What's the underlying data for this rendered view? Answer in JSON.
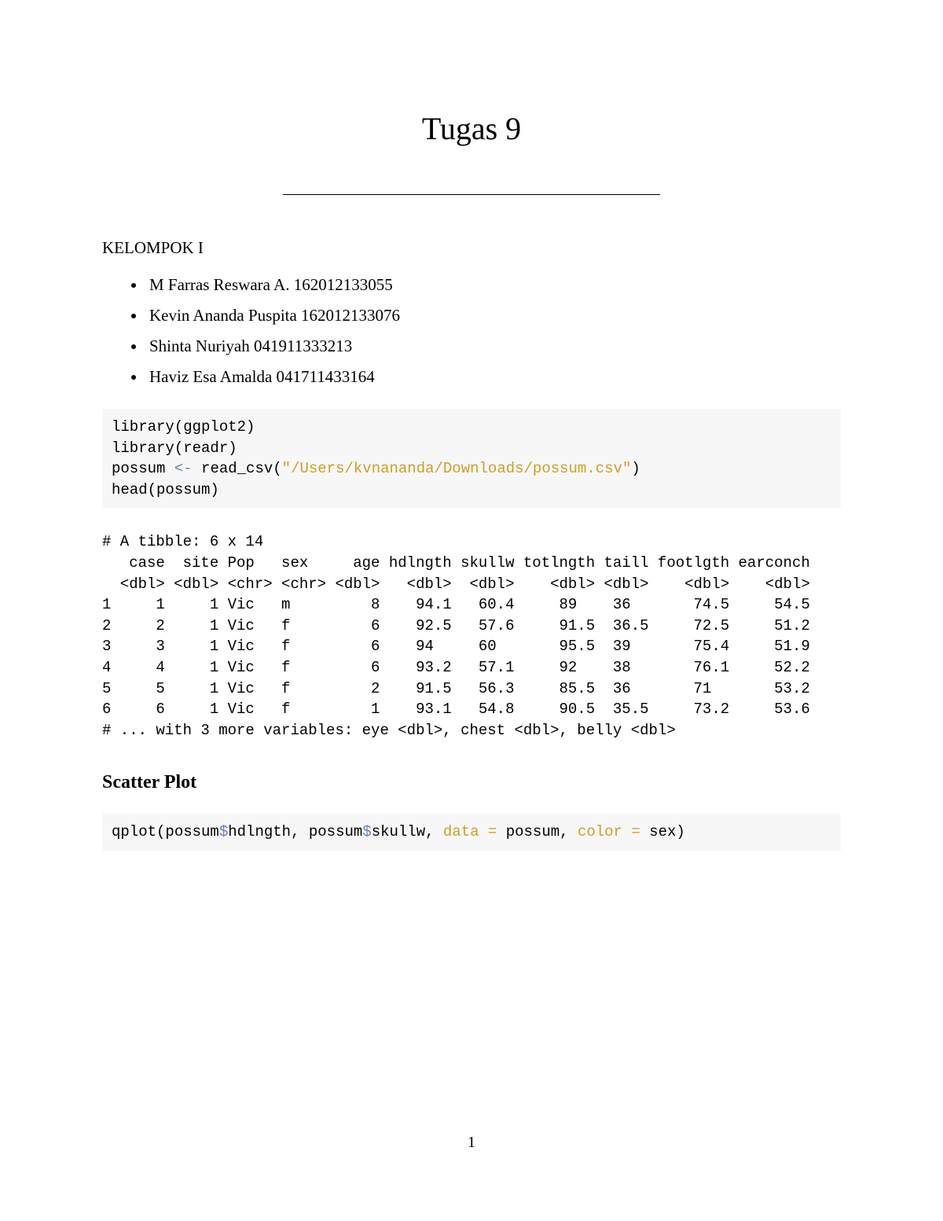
{
  "title": "Tugas 9",
  "group_label": "KELOMPOK I",
  "members": [
    "M Farras Reswara A. 162012133055",
    "Kevin Ananda Puspita 162012133076",
    "Shinta Nuriyah 041911333213",
    "Haviz Esa Amalda 041711433164"
  ],
  "code1": {
    "l1a": "library",
    "l1b": "(ggplot2)",
    "l2a": "library",
    "l2b": "(readr)",
    "l3a": "possum ",
    "l3b": "<-",
    "l3c": " read_csv",
    "l3d": "(",
    "l3e": "\"/Users/kvnananda/Downloads/possum.csv\"",
    "l3f": ")",
    "l4a": "head",
    "l4b": "(possum)"
  },
  "tibble": {
    "header": "# A tibble: 6 x 14",
    "cols": "   case  site Pop   sex     age hdlngth skullw totlngth taill footlgth earconch",
    "types": "  <dbl> <dbl> <chr> <chr> <dbl>   <dbl>  <dbl>    <dbl> <dbl>    <dbl>    <dbl>",
    "r1": "1     1     1 Vic   m         8    94.1   60.4     89    36       74.5     54.5",
    "r2": "2     2     1 Vic   f         6    92.5   57.6     91.5  36.5     72.5     51.2",
    "r3": "3     3     1 Vic   f         6    94     60       95.5  39       75.4     51.9",
    "r4": "4     4     1 Vic   f         6    93.2   57.1     92    38       76.1     52.2",
    "r5": "5     5     1 Vic   f         2    91.5   56.3     85.5  36       71       53.2",
    "r6": "6     6     1 Vic   f         1    93.1   54.8     90.5  35.5     73.2     53.6",
    "footer": "# ... with 3 more variables: eye <dbl>, chest <dbl>, belly <dbl>"
  },
  "section": "Scatter Plot",
  "code2": {
    "a": "qplot",
    "b": "(possum",
    "c": "$",
    "d": "hdlngth, possum",
    "e": "$",
    "f": "skullw, ",
    "g": "data =",
    "h": " possum, ",
    "i": "color =",
    "j": " sex)"
  },
  "page_number": "1",
  "colors": {
    "bg": "#ffffff",
    "codebg": "#f7f7f7",
    "text": "#000000",
    "operator": "#687eb1",
    "string": "#d39c2a"
  },
  "fonts": {
    "body": "Times New Roman",
    "mono": "Courier New",
    "title_size": 40,
    "body_size": 21,
    "mono_size": 19
  }
}
